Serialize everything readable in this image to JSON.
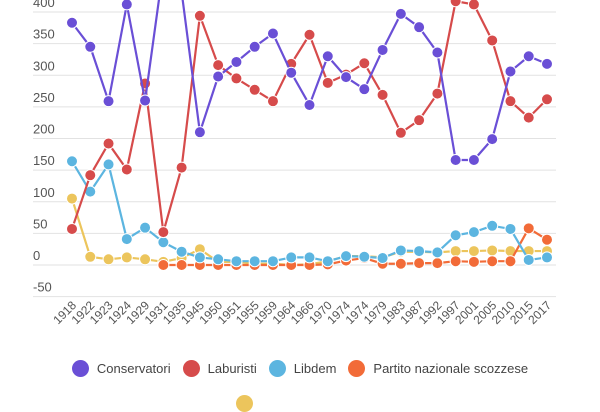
{
  "chart_data": {
    "type": "line",
    "title": "",
    "xlabel": "",
    "ylabel": "",
    "ylim": [
      -50,
      400
    ],
    "yticks": [
      400,
      350,
      300,
      250,
      200,
      150,
      100,
      50,
      0,
      -50
    ],
    "grid": true,
    "legend_position": "bottom",
    "categories": [
      "1918",
      "1922",
      "1923",
      "1924",
      "1929",
      "1931",
      "1935",
      "1945",
      "1950",
      "1951",
      "1955",
      "1959",
      "1964",
      "1966",
      "1970",
      "1974",
      "1974",
      "1979",
      "1983",
      "1987",
      "1992",
      "1997",
      "2001",
      "2005",
      "2010",
      "2015",
      "2017"
    ],
    "series": [
      {
        "name": "Conservatori",
        "color": "#6a4fd6",
        "values": [
          383,
          345,
          259,
          412,
          260,
          470,
          432,
          210,
          298,
          321,
          345,
          366,
          304,
          253,
          330,
          297,
          278,
          340,
          397,
          376,
          336,
          166,
          166,
          199,
          306,
          330,
          318
        ]
      },
      {
        "name": "Laburisti",
        "color": "#d64b4b",
        "values": [
          57,
          142,
          192,
          151,
          287,
          52,
          154,
          394,
          316,
          295,
          277,
          259,
          318,
          364,
          288,
          301,
          319,
          269,
          209,
          229,
          271,
          417,
          412,
          355,
          259,
          233,
          262
        ]
      },
      {
        "name": "Libdem",
        "color": "#5cb5e0",
        "values": [
          164,
          116,
          159,
          41,
          59,
          36,
          21,
          12,
          9,
          6,
          6,
          6,
          12,
          12,
          6,
          14,
          13,
          11,
          23,
          22,
          20,
          47,
          52,
          62,
          57,
          8,
          12
        ]
      },
      {
        "name": "Partito nazionale scozzese",
        "color": "#f26b38",
        "values": [
          null,
          null,
          null,
          null,
          null,
          0,
          0,
          0,
          0,
          0,
          0,
          0,
          0,
          0,
          1,
          7,
          11,
          2,
          2,
          3,
          3,
          6,
          5,
          6,
          6,
          58,
          40
        ]
      },
      {
        "color": "#ecc55c",
        "values": [
          105,
          13,
          9,
          12,
          9,
          5,
          11,
          25,
          5,
          5,
          2,
          2,
          0,
          1,
          6,
          14,
          14,
          12,
          21,
          21,
          20,
          22,
          22,
          23,
          22,
          22,
          22
        ]
      }
    ]
  }
}
